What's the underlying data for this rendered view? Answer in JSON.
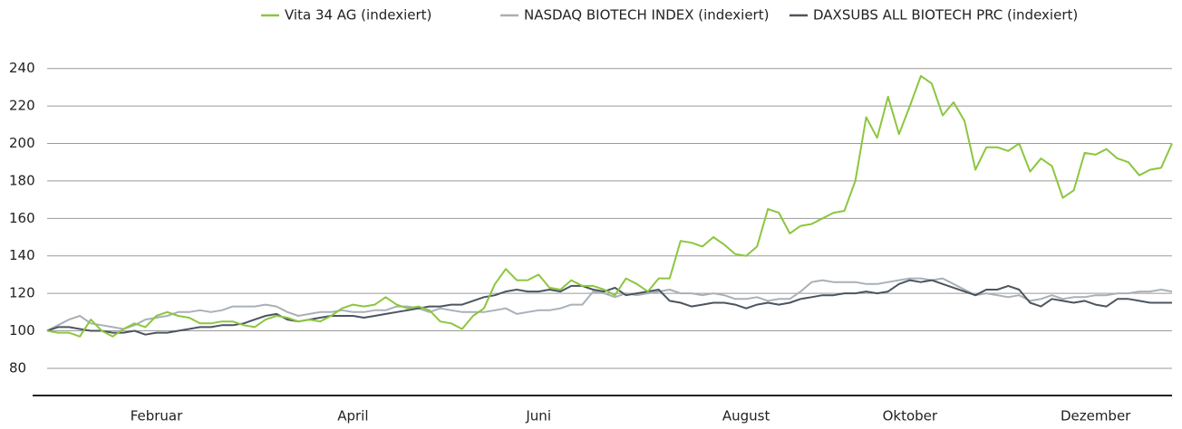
{
  "chart_data": {
    "type": "line",
    "categories": [
      null,
      null,
      null,
      null,
      null,
      null,
      null,
      null,
      null,
      null,
      "Februar",
      null,
      null,
      null,
      null,
      null,
      null,
      null,
      null,
      null,
      null,
      null,
      null,
      null,
      null,
      null,
      null,
      null,
      "April",
      null,
      null,
      null,
      null,
      null,
      null,
      null,
      null,
      null,
      null,
      null,
      null,
      null,
      null,
      null,
      null,
      "Juni",
      null,
      null,
      null,
      null,
      null,
      null,
      null,
      null,
      null,
      null,
      null,
      null,
      null,
      null,
      null,
      null,
      null,
      null,
      "August",
      null,
      null,
      null,
      null,
      null,
      null,
      null,
      null,
      null,
      null,
      null,
      null,
      null,
      null,
      "Oktober",
      null,
      null,
      null,
      null,
      null,
      null,
      null,
      null,
      null,
      null,
      null,
      null,
      null,
      null,
      null,
      null,
      "Dezember",
      null,
      null,
      null,
      null,
      null,
      null,
      null
    ],
    "series": [
      {
        "name": "Vita 34 AG (indexiert)",
        "color": "#8cc63f",
        "values": [
          100,
          99,
          99,
          97,
          106,
          100,
          97,
          101,
          104,
          102,
          108,
          110,
          108,
          107,
          104,
          104,
          105,
          105,
          103,
          102,
          106,
          108,
          107,
          105,
          106,
          105,
          108,
          112,
          114,
          113,
          114,
          118,
          114,
          112,
          113,
          111,
          105,
          104,
          101,
          108,
          112,
          125,
          133,
          127,
          127,
          130,
          123,
          122,
          127,
          124,
          124,
          122,
          119,
          128,
          125,
          121,
          128,
          128,
          148,
          147,
          145,
          150,
          146,
          141,
          140,
          145,
          165,
          163,
          152,
          156,
          157,
          160,
          163,
          164,
          180,
          214,
          203,
          225,
          205,
          220,
          236,
          232,
          215,
          222,
          212,
          186,
          198,
          198,
          196,
          200,
          185,
          192,
          188,
          171,
          175,
          195,
          194,
          197,
          192,
          190,
          183,
          186,
          187,
          200
        ]
      },
      {
        "name": "NASDAQ BIOTECH INDEX (indexiert)",
        "color": "#a9b0b7",
        "values": [
          100,
          103,
          106,
          108,
          104,
          103,
          102,
          101,
          103,
          106,
          107,
          108,
          110,
          110,
          111,
          110,
          111,
          113,
          113,
          113,
          114,
          113,
          110,
          108,
          109,
          110,
          110,
          111,
          110,
          110,
          111,
          111,
          113,
          113,
          112,
          110,
          112,
          111,
          110,
          110,
          110,
          111,
          112,
          109,
          110,
          111,
          111,
          112,
          114,
          114,
          121,
          120,
          118,
          120,
          119,
          120,
          121,
          122,
          120,
          120,
          119,
          120,
          119,
          117,
          117,
          118,
          116,
          117,
          117,
          121,
          126,
          127,
          126,
          126,
          126,
          125,
          125,
          126,
          127,
          128,
          128,
          127,
          128,
          125,
          122,
          119,
          120,
          119,
          118,
          119,
          116,
          117,
          119,
          117,
          118,
          118,
          119,
          119,
          120,
          120,
          121,
          121,
          122,
          121
        ]
      },
      {
        "name": "DAXSUBS ALL BIOTECH PRC (indexiert)",
        "color": "#4a5560",
        "values": [
          100,
          102,
          102,
          101,
          100,
          100,
          99,
          99,
          100,
          98,
          99,
          99,
          100,
          101,
          102,
          102,
          103,
          103,
          104,
          106,
          108,
          109,
          106,
          105,
          106,
          107,
          108,
          108,
          108,
          107,
          108,
          109,
          110,
          111,
          112,
          113,
          113,
          114,
          114,
          116,
          118,
          119,
          121,
          122,
          121,
          121,
          122,
          121,
          124,
          124,
          122,
          121,
          123,
          119,
          120,
          121,
          122,
          116,
          115,
          113,
          114,
          115,
          115,
          114,
          112,
          114,
          115,
          114,
          115,
          117,
          118,
          119,
          119,
          120,
          120,
          121,
          120,
          121,
          125,
          127,
          126,
          127,
          125,
          123,
          121,
          119,
          122,
          122,
          124,
          122,
          115,
          113,
          117,
          116,
          115,
          116,
          114,
          113,
          117,
          117,
          116,
          115,
          115,
          115
        ]
      }
    ],
    "ylim": [
      65,
      250
    ],
    "yticks": [
      80,
      100,
      120,
      140,
      160,
      180,
      200,
      220,
      240
    ],
    "grid": true
  }
}
